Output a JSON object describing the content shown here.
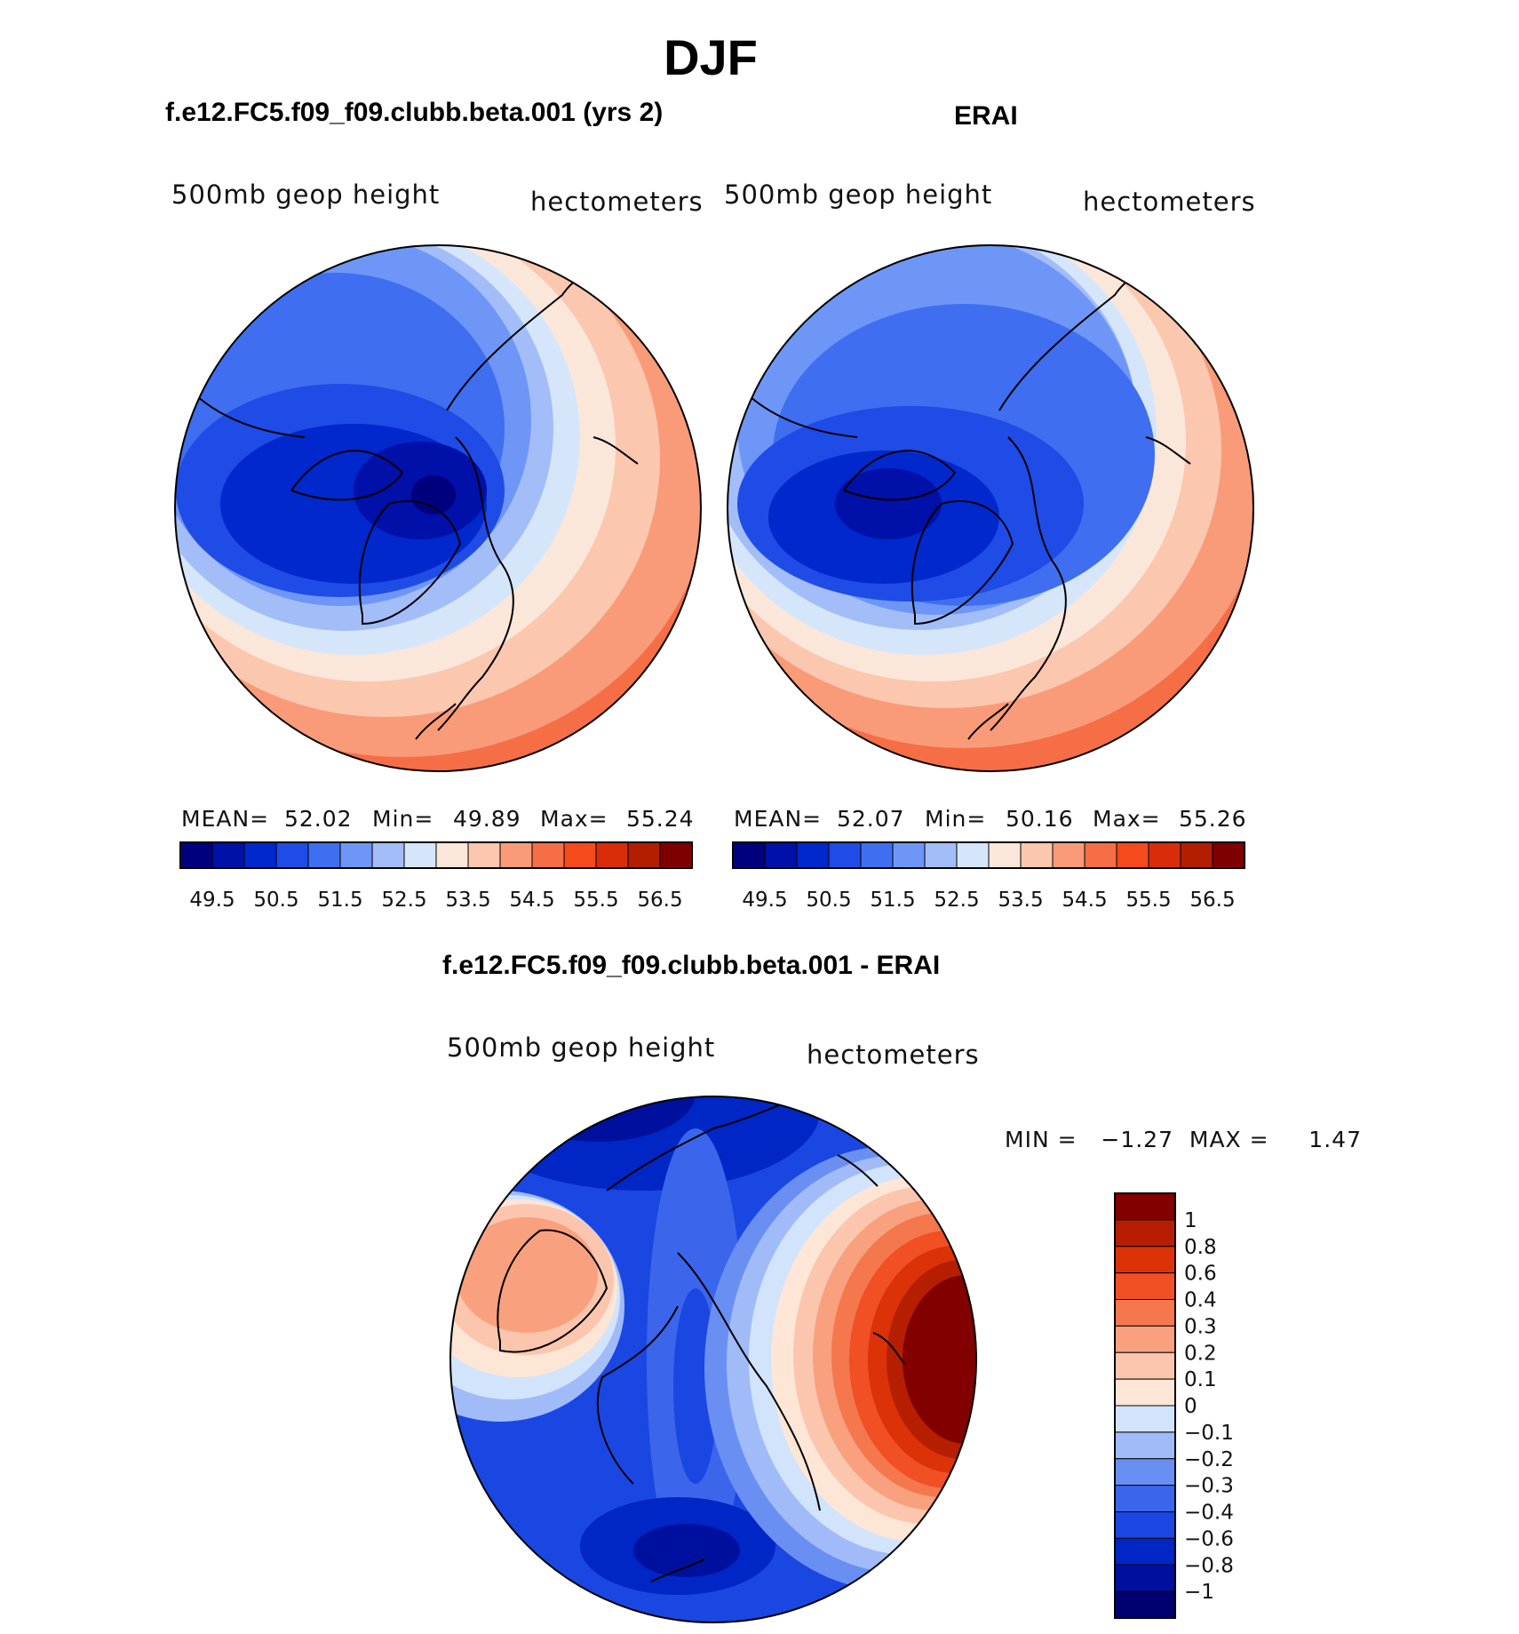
{
  "figure": {
    "title": "DJF"
  },
  "colors": {
    "seq16": [
      "#00007f",
      "#0010a8",
      "#0028cc",
      "#1f4be6",
      "#3f6ef0",
      "#6e96f7",
      "#a3bdf9",
      "#d5e6fb",
      "#fbe7d9",
      "#fbc7ae",
      "#f99b78",
      "#f66e45",
      "#f44a1c",
      "#d92c09",
      "#b31e00",
      "#7f0000"
    ],
    "div16": [
      "#000072",
      "#00109e",
      "#0026c5",
      "#1a47e2",
      "#3b66ec",
      "#6a8ff3",
      "#a1bbf9",
      "#d2e4fb",
      "#fde6d6",
      "#fbc6ad",
      "#f9a07e",
      "#f5774e",
      "#f14f24",
      "#db3208",
      "#b51f00",
      "#820000"
    ],
    "coast": "#000000"
  },
  "chart_data": [
    {
      "type": "heatmap",
      "projection": "north-polar-stereographic",
      "title": "f.e12.FC5.f09_f09.clubb.beta.001 (yrs 2)",
      "left_label": "500mb geop height",
      "right_label": "hectometers",
      "stats": {
        "mean_label": "MEAN=",
        "mean": "52.02",
        "min_label": "Min=",
        "min": "49.89",
        "max_label": "Max=",
        "max": "55.24"
      },
      "colorbar": {
        "orientation": "horizontal",
        "levels": [
          "49.5",
          "50.5",
          "51.5",
          "52.5",
          "53.5",
          "54.5",
          "55.5",
          "56.5"
        ],
        "bins": 16
      }
    },
    {
      "type": "heatmap",
      "projection": "north-polar-stereographic",
      "title": "ERAI",
      "left_label": "500mb geop height",
      "right_label": "hectometers",
      "stats": {
        "mean_label": "MEAN=",
        "mean": "52.07",
        "min_label": "Min=",
        "min": "50.16",
        "max_label": "Max=",
        "max": "55.26"
      },
      "colorbar": {
        "orientation": "horizontal",
        "levels": [
          "49.5",
          "50.5",
          "51.5",
          "52.5",
          "53.5",
          "54.5",
          "55.5",
          "56.5"
        ],
        "bins": 16
      }
    },
    {
      "type": "heatmap",
      "projection": "north-polar-stereographic",
      "title": "f.e12.FC5.f09_f09.clubb.beta.001 - ERAI",
      "left_label": "500mb geop height",
      "right_label": "hectometers",
      "stats": {
        "text": "MIN =   −1.27  MAX =     1.47"
      },
      "colorbar": {
        "orientation": "vertical",
        "levels": [
          "1",
          "0.8",
          "0.6",
          "0.4",
          "0.3",
          "0.2",
          "0.1",
          "0",
          "−0.1",
          "−0.2",
          "−0.3",
          "−0.4",
          "−0.6",
          "−0.8",
          "−1"
        ],
        "bins": 16
      }
    }
  ]
}
